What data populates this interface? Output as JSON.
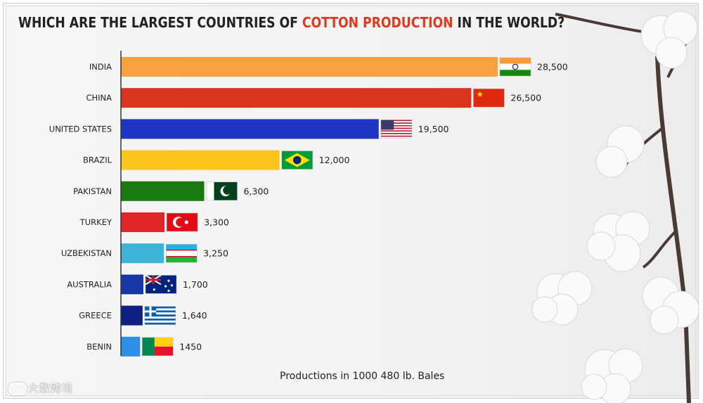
{
  "title": {
    "part1": "WHICH ARE THE LARGEST COUNTRIES OF ",
    "highlight": "COTTON PRODUCTION",
    "part2": " IN THE WORLD?"
  },
  "watermark": "大数跨境",
  "chart_data": {
    "type": "bar",
    "orientation": "horizontal",
    "categories": [
      "INDIA",
      "CHINA",
      "UNITED STATES",
      "BRAZIL",
      "PAKISTAN",
      "TURKEY",
      "UZBEKISTAN",
      "AUSTRALIA",
      "GREECE",
      "BENIN"
    ],
    "values": [
      28500,
      26500,
      19500,
      12000,
      6300,
      3300,
      3250,
      1700,
      1640,
      1450
    ],
    "value_labels": [
      "28,500",
      "26,500",
      "19,500",
      "12,000",
      "6,300",
      "3,300",
      "3,250",
      "1,700",
      "1,640",
      "1450"
    ],
    "colors": [
      "#f9a03f",
      "#d9341c",
      "#2035c4",
      "#fcc51d",
      "#1a7a12",
      "#e0262a",
      "#3db4d8",
      "#1838a8",
      "#0f2180",
      "#2f8fe8"
    ],
    "xlabel": "Productions in 1000 480 lb. Bales",
    "ylabel": "",
    "xlim": [
      0,
      28500
    ],
    "grid": false,
    "legend": "none"
  }
}
